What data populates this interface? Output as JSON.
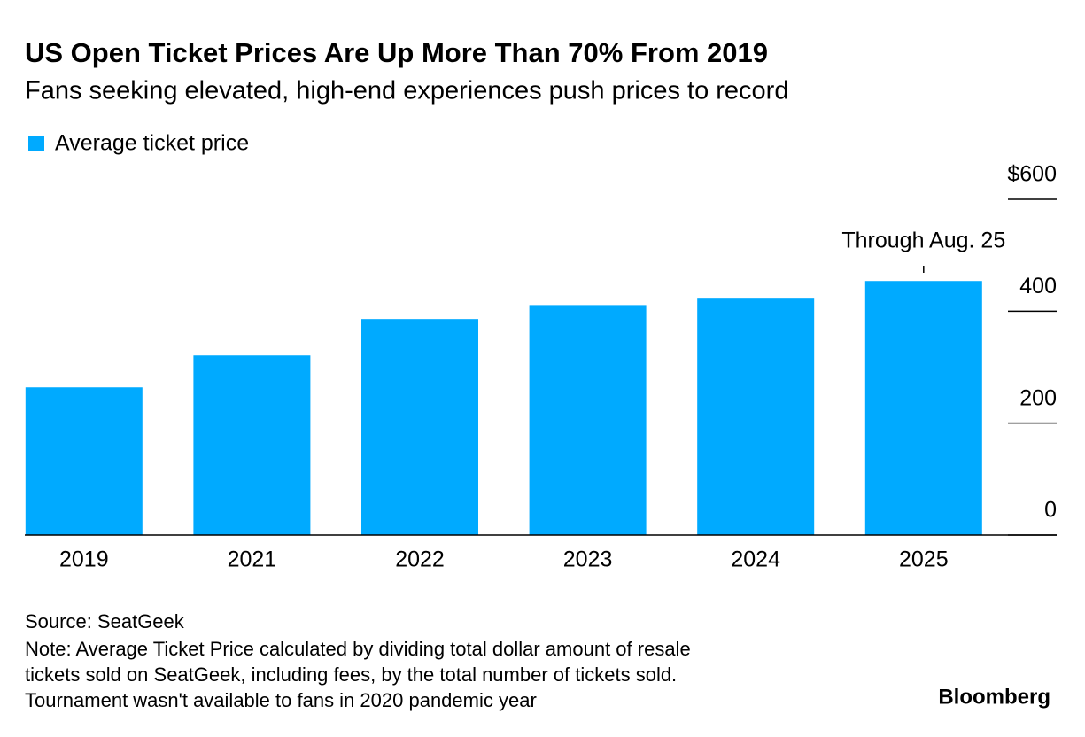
{
  "chart_data": {
    "type": "bar",
    "title": "US Open Ticket Prices Are Up More Than 70% From 2019",
    "subtitle": "Fans seeking elevated, high-end experiences push prices to record",
    "categories": [
      "2019",
      "2021",
      "2022",
      "2023",
      "2024",
      "2025"
    ],
    "series": [
      {
        "name": "Average ticket price",
        "color": "#00aaff",
        "values": [
          264,
          321,
          386,
          411,
          424,
          454
        ]
      }
    ],
    "ylim": [
      0,
      600
    ],
    "yticks": [
      0,
      200,
      400,
      {
        "value": 600,
        "label": "$600"
      }
    ],
    "annotation": "Through Aug. 25",
    "source": "Source: SeatGeek",
    "note": [
      "Note: Average Ticket Price calculated by dividing total dollar amount of resale",
      "tickets sold on SeatGeek, including fees, by the total number of tickets sold.",
      "Tournament wasn't available to fans in 2020 pandemic year"
    ],
    "brand": "Bloomberg"
  }
}
